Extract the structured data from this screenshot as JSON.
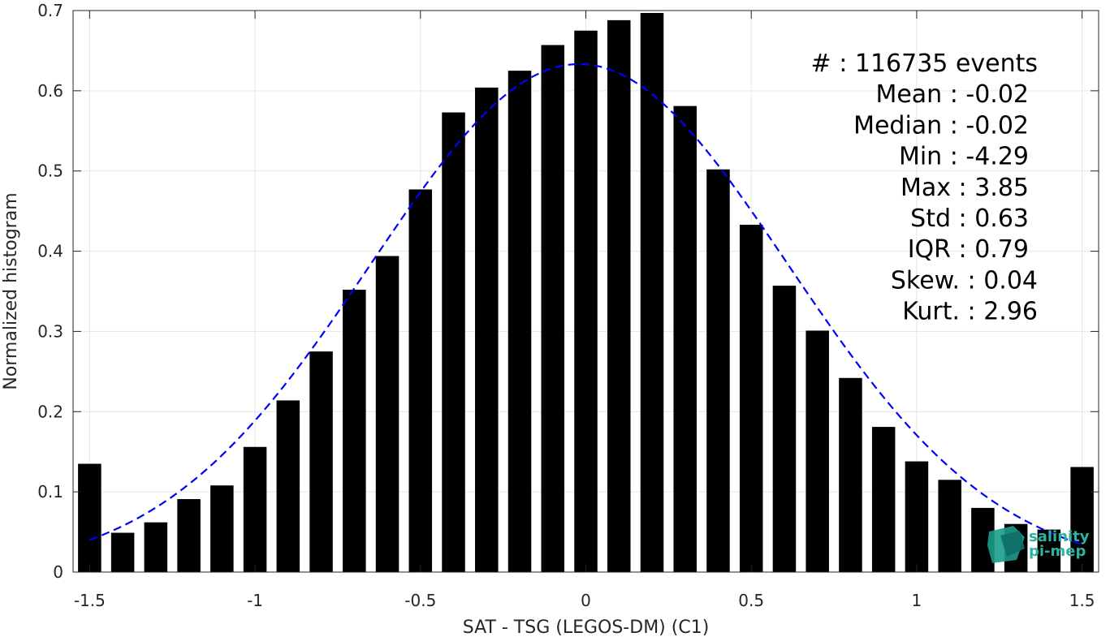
{
  "chart_data": {
    "type": "bar",
    "xlabel": "SAT - TSG (LEGOS-DM) (C1)",
    "ylabel": "Normalized histogram",
    "xlim": [
      -1.55,
      1.55
    ],
    "ylim": [
      0,
      0.7
    ],
    "grid": true,
    "x_ticks": [
      -1.5,
      -1,
      -0.5,
      0,
      0.5,
      1,
      1.5
    ],
    "x_tick_labels": [
      "-1.5",
      "-1",
      "-0.5",
      "0",
      "0.5",
      "1",
      "1.5"
    ],
    "y_ticks": [
      0,
      0.1,
      0.2,
      0.3,
      0.4,
      0.5,
      0.6,
      0.7
    ],
    "y_tick_labels": [
      "0",
      "0.1",
      "0.2",
      "0.3",
      "0.4",
      "0.5",
      "0.6",
      "0.7"
    ],
    "bar_width": 0.07,
    "series": [
      {
        "type": "bar",
        "color": "#000000",
        "x": [
          -1.5,
          -1.4,
          -1.3,
          -1.2,
          -1.1,
          -1.0,
          -0.9,
          -0.8,
          -0.7,
          -0.6,
          -0.5,
          -0.4,
          -0.3,
          -0.2,
          -0.1,
          0.0,
          0.1,
          0.2,
          0.3,
          0.4,
          0.5,
          0.6,
          0.7,
          0.8,
          0.9,
          1.0,
          1.1,
          1.2,
          1.3,
          1.4,
          1.5
        ],
        "values": [
          0.135,
          0.049,
          0.062,
          0.091,
          0.108,
          0.156,
          0.214,
          0.275,
          0.352,
          0.394,
          0.477,
          0.573,
          0.604,
          0.625,
          0.657,
          0.675,
          0.688,
          0.697,
          0.581,
          0.502,
          0.433,
          0.357,
          0.301,
          0.242,
          0.181,
          0.138,
          0.115,
          0.08,
          0.06,
          0.053,
          0.131
        ]
      },
      {
        "type": "line",
        "style": "dashed",
        "color": "#0000ff",
        "mean": -0.02,
        "std": 0.63,
        "x_range": [
          -1.5,
          1.5
        ]
      }
    ],
    "stats": [
      "#  : 116735 events",
      "Mean : -0.02",
      "Median : -0.02",
      "Min : -4.29",
      "Max : 3.85",
      "Std : 0.63",
      "IQR : 0.79",
      "Skew. : 0.04",
      "Kurt. : 2.96"
    ],
    "logo": [
      "salinity",
      "pi-mep"
    ]
  }
}
